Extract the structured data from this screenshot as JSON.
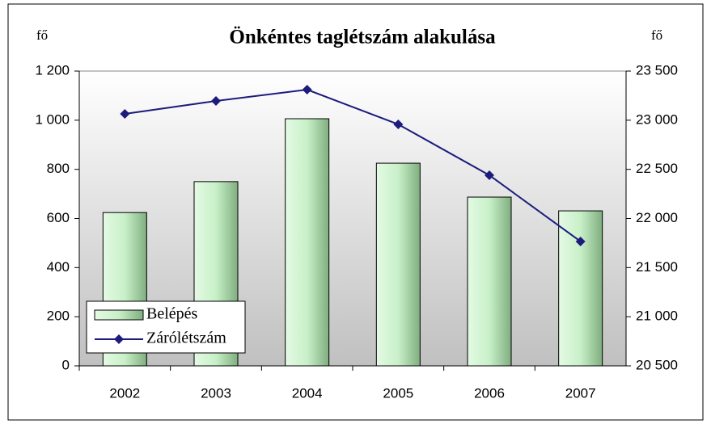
{
  "chart_data": {
    "type": "bar_line",
    "title": "Önkéntes taglétszám alakulása",
    "y_label": "fő",
    "y2_label": "fő",
    "categories": [
      "2002",
      "2003",
      "2004",
      "2005",
      "2006",
      "2007"
    ],
    "series": [
      {
        "name": "Belépés",
        "type": "bar",
        "color": "#c8f0c8",
        "values": [
          624,
          750,
          1006,
          825,
          687,
          631
        ]
      },
      {
        "name": "Zárólétszám",
        "type": "line",
        "axis": "y2",
        "color": "#1c1c7c",
        "values": [
          23064,
          23196,
          23311,
          22958,
          22440,
          21766
        ]
      }
    ],
    "ylim": [
      0,
      1200
    ],
    "yticks": [
      0,
      200,
      400,
      600,
      800,
      {
        "value": 1000,
        "label": "1 000"
      },
      {
        "value": 1200,
        "label": "1 200"
      }
    ],
    "y2lim": [
      20500,
      23500
    ],
    "y2ticks": [
      {
        "value": 20500,
        "label": "20 500"
      },
      {
        "value": 21000,
        "label": "21 000"
      },
      {
        "value": 21500,
        "label": "21 500"
      },
      {
        "value": 22000,
        "label": "22 000"
      },
      {
        "value": 22500,
        "label": "22 500"
      },
      {
        "value": 23000,
        "label": "23 000"
      },
      {
        "value": 23500,
        "label": "23 500"
      }
    ],
    "legend": "bottom-left"
  }
}
